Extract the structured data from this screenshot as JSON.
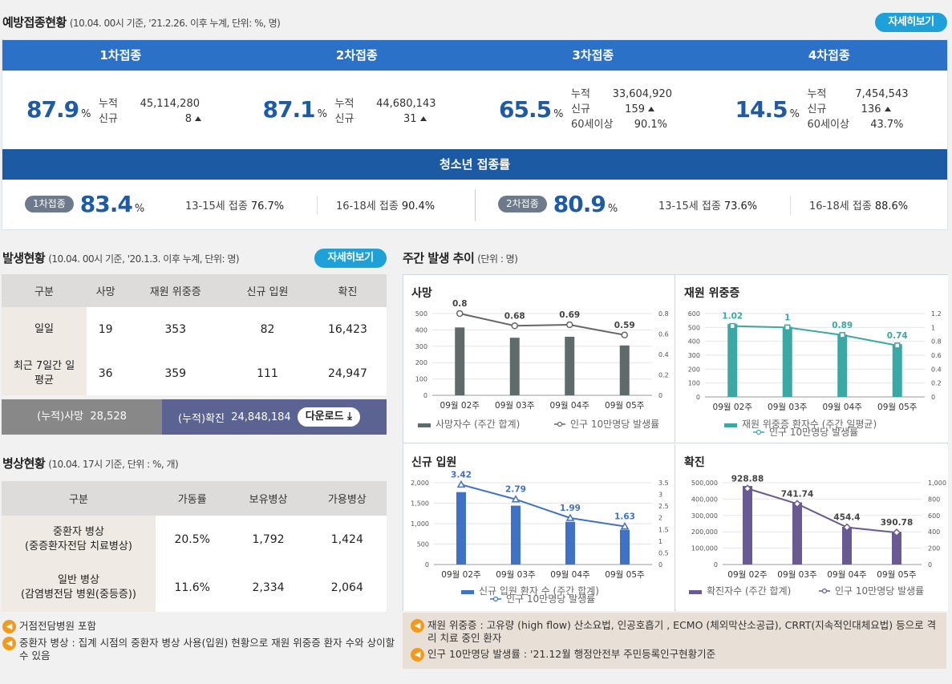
{
  "vaccination": {
    "title": "예방접종현황",
    "note": "(10.04. 00시 기준, '21.2.26. 이후 누계, 단위: %, 명)",
    "more": "자세히보기",
    "doses": [
      {
        "label": "1차접종",
        "pct": "87.9",
        "unit": "%",
        "cum_k": "누적",
        "cum": "45,114,280",
        "new_k": "신규",
        "new": "8"
      },
      {
        "label": "2차접종",
        "pct": "87.1",
        "unit": "%",
        "cum_k": "누적",
        "cum": "44,680,143",
        "new_k": "신규",
        "new": "31"
      },
      {
        "label": "3차접종",
        "pct": "65.5",
        "unit": "%",
        "cum_k": "누적",
        "cum": "33,604,920",
        "new_k": "신규",
        "new": "159",
        "s_k": "60세이상",
        "s": "90.1%"
      },
      {
        "label": "4차접종",
        "pct": "14.5",
        "unit": "%",
        "cum_k": "누적",
        "cum": "7,454,543",
        "new_k": "신규",
        "new": "136",
        "s_k": "60세이상",
        "s": "43.7%"
      }
    ],
    "teen": {
      "title": "청소년 접종률",
      "first": {
        "badge": "1차접종",
        "pct": "83.4",
        "unit": "%",
        "a_k": "13-15세",
        "a_l": "접종",
        "a": "76.7%",
        "b_k": "16-18세",
        "b_l": "접종",
        "b": "90.4%"
      },
      "second": {
        "badge": "2차접종",
        "pct": "80.9",
        "unit": "%",
        "a_k": "13-15세",
        "a_l": "접종",
        "a": "73.6%",
        "b_k": "16-18세",
        "b_l": "접종",
        "b": "88.6%"
      }
    }
  },
  "occurrence": {
    "title": "발생현황",
    "note": "(10.04. 00시 기준, '20.1.3. 이후 누계, 단위: 명)",
    "more": "자세히보기",
    "headers": [
      "구분",
      "사망",
      "재원 위중증",
      "신규 입원",
      "확진"
    ],
    "rows": [
      {
        "label": "일일",
        "cells": [
          "19",
          "353",
          "82",
          "16,423"
        ]
      },
      {
        "label": "최근 7일간 일평균",
        "cells": [
          "36",
          "359",
          "111",
          "24,947"
        ]
      }
    ],
    "cum_death_label": "(누적)사망",
    "cum_death": "28,528",
    "cum_conf_label": "(누적)확진",
    "cum_conf": "24,848,184",
    "download": "다운로드"
  },
  "beds": {
    "title": "병상현황",
    "note": "(10.04. 17시 기준, 단위 : %, 개)",
    "headers": [
      "구분",
      "가동률",
      "보유병상",
      "가용병상"
    ],
    "rows": [
      {
        "l1": "중환자 병상",
        "l2": "(중증환자전담 치료병상)",
        "cells": [
          "20.5%",
          "1,792",
          "1,424"
        ]
      },
      {
        "l1": "일반 병상",
        "l2": "(감염병전담 병원(중등증))",
        "cells": [
          "11.6%",
          "2,334",
          "2,064"
        ]
      }
    ]
  },
  "left_notes": [
    "거점전담병원 포함",
    "중환자 병상 : 집계 시점의 중환자 병상 사용(입원) 현황으로 재원 위중증 환자 수와 상이할 수 있음"
  ],
  "weekly": {
    "title": "주간 발생 추이",
    "note": "(단위 : 명)"
  },
  "chart_data": [
    {
      "type": "bar",
      "title": "사망",
      "categories": [
        "09월 02주",
        "09월 03주",
        "09월 04주",
        "09월 05주"
      ],
      "series": [
        {
          "name": "사망자수 (주간 합계)",
          "values": [
            415,
            352,
            358,
            305
          ],
          "color": "#5f6a6a"
        },
        {
          "name": "인구 10만명당 발생률",
          "values": [
            0.8,
            0.68,
            0.69,
            0.59
          ],
          "axis": "right"
        }
      ],
      "ylim": [
        0,
        500
      ],
      "y2lim": [
        0,
        0.8
      ],
      "yticks": [
        0,
        100,
        200,
        300,
        400,
        500
      ],
      "y2ticks": [
        0,
        0.2,
        0.4,
        0.6,
        0.8
      ]
    },
    {
      "type": "bar",
      "title": "재원 위중증",
      "categories": [
        "09월 02주",
        "09월 03주",
        "09월 04주",
        "09월 05주"
      ],
      "series": [
        {
          "name": "재원 위중증 환자수 (주간 일평균)",
          "values": [
            525,
            505,
            449,
            380
          ],
          "color": "#3aa8a4"
        },
        {
          "name": "인구 10만명당 발생률",
          "values": [
            1.02,
            1,
            0.89,
            0.74
          ],
          "axis": "right"
        }
      ],
      "ylim": [
        0,
        600
      ],
      "y2lim": [
        0,
        1.2
      ],
      "yticks": [
        0,
        100,
        200,
        300,
        400,
        500,
        600
      ],
      "y2ticks": [
        0,
        0.2,
        0.4,
        0.6,
        0.8,
        1,
        1.2
      ]
    },
    {
      "type": "bar",
      "title": "신규 입원",
      "categories": [
        "09월 02주",
        "09월 03주",
        "09월 04주",
        "09월 05주"
      ],
      "series": [
        {
          "name": "신규 입원 환자 수 (주간 합계)",
          "values": [
            1770,
            1440,
            1045,
            850
          ],
          "color": "#3f72c6"
        },
        {
          "name": "인구 10만명당 발생률",
          "values": [
            3.42,
            2.79,
            1.99,
            1.63
          ],
          "axis": "right"
        }
      ],
      "ylim": [
        0,
        2000
      ],
      "y2lim": [
        0,
        3.5
      ],
      "yticks": [
        0,
        500,
        1000,
        1500,
        2000
      ],
      "y2ticks": [
        0,
        0.5,
        1,
        1.5,
        2,
        2.5,
        3,
        3.5
      ]
    },
    {
      "type": "bar",
      "title": "확진",
      "categories": [
        "09월 02주",
        "09월 03주",
        "09월 04주",
        "09월 05주"
      ],
      "series": [
        {
          "name": "확진자수 (주간 합계)",
          "values": [
            480000,
            380000,
            230000,
            200000
          ],
          "color": "#6a5a93"
        },
        {
          "name": "인구 10만명당 발생률",
          "values": [
            928.88,
            741.74,
            454.4,
            390.78
          ],
          "axis": "right"
        }
      ],
      "ylim": [
        0,
        500000
      ],
      "y2lim": [
        0,
        1000
      ],
      "yticks": [
        0,
        100000,
        200000,
        300000,
        400000,
        500000
      ],
      "y2ticks": [
        0,
        200,
        400,
        600,
        800,
        1000
      ]
    }
  ],
  "chart_tick_labels": [
    {
      "y": [
        "0",
        "100",
        "200",
        "300",
        "400",
        "500"
      ],
      "y2": [
        "0",
        "0.2",
        "0.4",
        "0.6",
        "0.8"
      ]
    },
    {
      "y": [
        "0",
        "100",
        "200",
        "300",
        "400",
        "500",
        "600"
      ],
      "y2": [
        "0",
        "0.2",
        "0.4",
        "0.6",
        "0.8",
        "1",
        "1.2"
      ]
    },
    {
      "y": [
        "0",
        "500",
        "1,000",
        "1,500",
        "2,000"
      ],
      "y2": [
        "0",
        "0.5",
        "1",
        "1.5",
        "2",
        "2.5",
        "3",
        "3.5"
      ]
    },
    {
      "y": [
        "0",
        "100,000",
        "200,000",
        "300,000",
        "400,000",
        "500,000"
      ],
      "y2": [
        "0",
        "200",
        "400",
        "600",
        "800",
        "1,000"
      ]
    }
  ],
  "chart_value_labels": [
    [
      "0.8",
      "0.68",
      "0.69",
      "0.59"
    ],
    [
      "1.02",
      "1",
      "0.89",
      "0.74"
    ],
    [
      "3.42",
      "2.79",
      "1.99",
      "1.63"
    ],
    [
      "928.88",
      "741.74",
      "454.4",
      "390.78"
    ]
  ],
  "right_notes": [
    "재원 위중증 : 고유량 (high flow) 산소요법, 인공호흡기 , ECMO (체외막산소공급), CRRT(지속적인대체요법) 등으로 격리 치료 중인 환자",
    "인구 10만명당 발생률 : '21.12월 행정안전부 주민등록인구현황기준"
  ],
  "colors": {
    "primary": "#2a71c7",
    "teen_bar": "#1c5aa3",
    "accent": "#1ea0d8",
    "value": "#1f5aa6",
    "cum_conf_bg": "#5b6392",
    "note_icon": "#f39a1c"
  }
}
